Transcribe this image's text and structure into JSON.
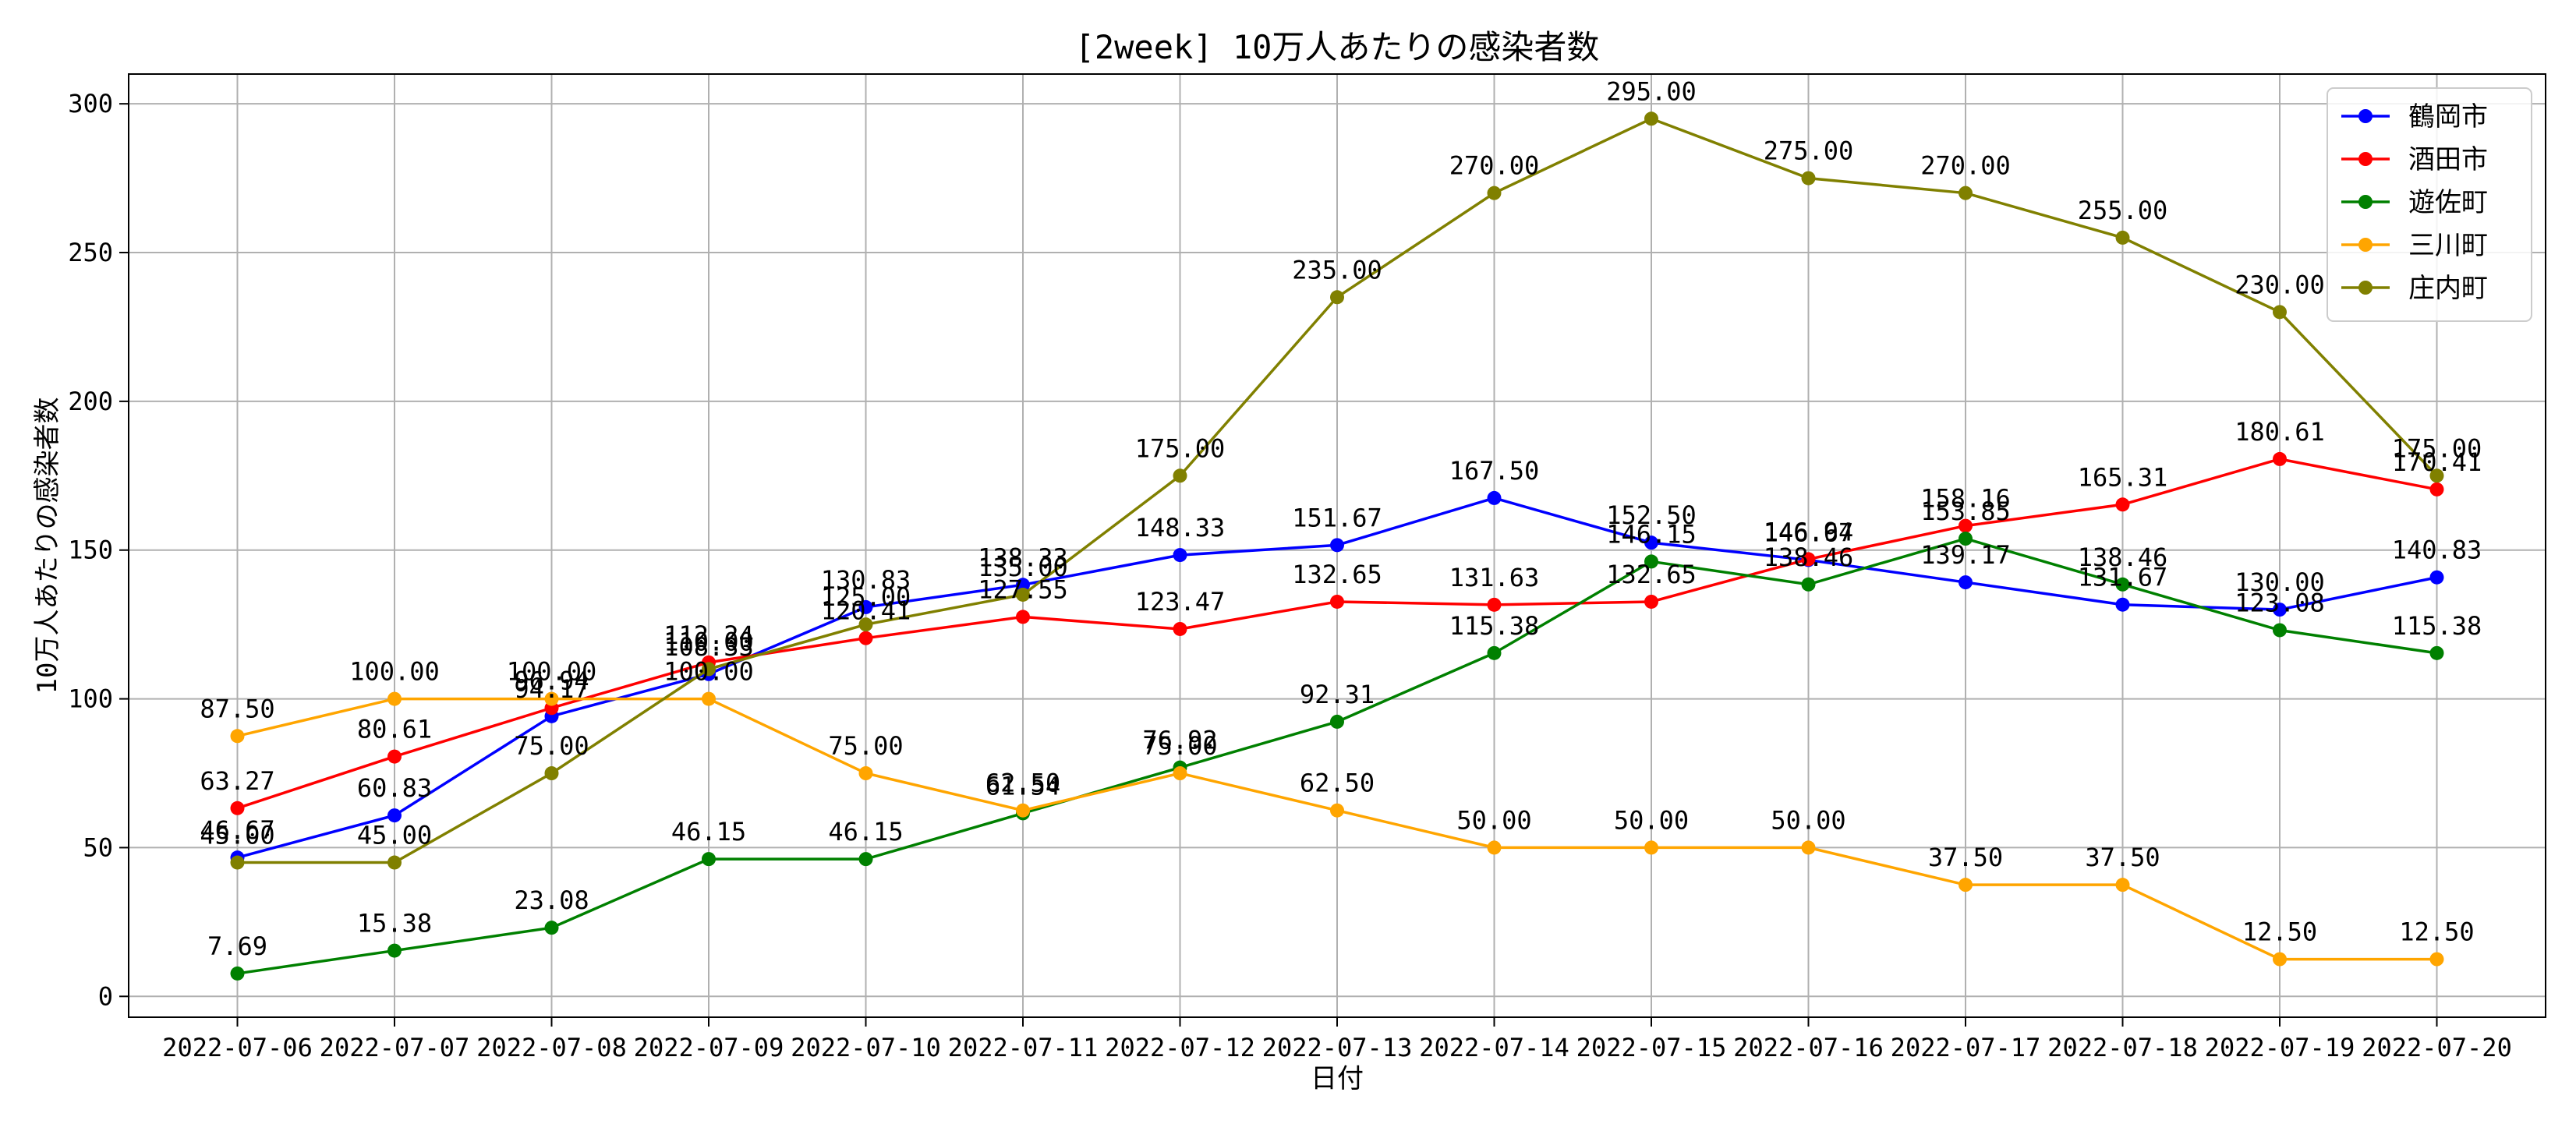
{
  "chart_data": {
    "type": "line",
    "title": "[2week] 10万人あたりの感染者数",
    "xlabel": "日付",
    "ylabel": "10万人あたりの感染者数",
    "ylim": [
      -7,
      310
    ],
    "yticks": [
      0,
      50,
      100,
      150,
      200,
      250,
      300
    ],
    "grid": true,
    "legend_position": "top-right",
    "categories": [
      "2022-07-06",
      "2022-07-07",
      "2022-07-08",
      "2022-07-09",
      "2022-07-10",
      "2022-07-11",
      "2022-07-12",
      "2022-07-13",
      "2022-07-14",
      "2022-07-15",
      "2022-07-16",
      "2022-07-17",
      "2022-07-18",
      "2022-07-19",
      "2022-07-20"
    ],
    "series": [
      {
        "name": "鶴岡市",
        "color": "#0000ff",
        "values": [
          46.67,
          60.83,
          94.17,
          108.33,
          130.83,
          138.33,
          148.33,
          151.67,
          167.5,
          152.5,
          146.67,
          139.17,
          131.67,
          130.0,
          140.83
        ]
      },
      {
        "name": "酒田市",
        "color": "#ff0000",
        "values": [
          63.27,
          80.61,
          96.94,
          112.24,
          120.41,
          127.55,
          123.47,
          132.65,
          131.63,
          132.65,
          146.94,
          158.16,
          165.31,
          180.61,
          170.41
        ]
      },
      {
        "name": "遊佐町",
        "color": "#008000",
        "values": [
          7.69,
          15.38,
          23.08,
          46.15,
          46.15,
          61.54,
          76.92,
          92.31,
          115.38,
          146.15,
          138.46,
          153.85,
          138.46,
          123.08,
          115.38
        ]
      },
      {
        "name": "三川町",
        "color": "#ffa500",
        "values": [
          87.5,
          100.0,
          100.0,
          100.0,
          75.0,
          62.5,
          75.0,
          62.5,
          50.0,
          50.0,
          50.0,
          37.5,
          37.5,
          12.5,
          12.5
        ]
      },
      {
        "name": "庄内町",
        "color": "#808000",
        "values": [
          45.0,
          45.0,
          75.0,
          110.0,
          125.0,
          135.0,
          175.0,
          235.0,
          270.0,
          295.0,
          275.0,
          270.0,
          255.0,
          230.0,
          175.0
        ]
      }
    ]
  }
}
